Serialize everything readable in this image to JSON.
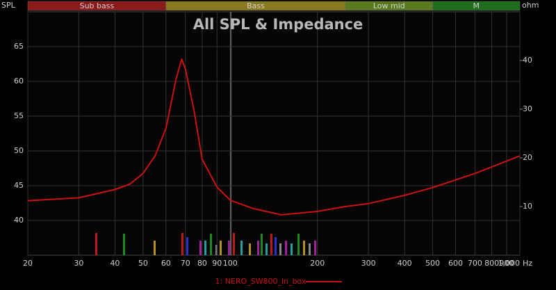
{
  "chart_data": {
    "type": "line",
    "title": "All SPL & Impedance",
    "ylabel": "SPL",
    "y2label": "ohm",
    "xlabel": "Hz",
    "bands": [
      {
        "name": "Sub bass",
        "from": 20,
        "to": 60,
        "color": "#8b1a1a"
      },
      {
        "name": "Bass",
        "from": 60,
        "to": 250,
        "color": "#8a7a1e"
      },
      {
        "name": "Low mid",
        "from": 250,
        "to": 500,
        "color": "#5a7a1e"
      },
      {
        "name": "M",
        "from": 500,
        "to": 1000,
        "color": "#1e6e1e"
      }
    ],
    "xscale": "log",
    "xlim": [
      20,
      1000
    ],
    "xticks": [
      20,
      30,
      40,
      50,
      60,
      70,
      80,
      90,
      100,
      200,
      300,
      400,
      500,
      600,
      700,
      800,
      900,
      {
        "value": 1000,
        "label": "1,000"
      }
    ],
    "ylim": [
      35,
      70
    ],
    "yticks": [
      40,
      45,
      50,
      55,
      60,
      65
    ],
    "y2lim": [
      0,
      50
    ],
    "y2ticks": [
      10,
      20,
      30,
      40
    ],
    "grid": true,
    "series": [
      {
        "name": "1: NERO_SW800_in_box",
        "color": "#cc1111",
        "axis": "y2",
        "x": [
          20,
          30,
          40,
          45,
          50,
          55,
          60,
          65,
          68,
          70,
          75,
          80,
          90,
          100,
          120,
          150,
          200,
          250,
          300,
          400,
          500,
          700,
          1000
        ],
        "values": [
          11.2,
          11.8,
          13.5,
          14.6,
          16.8,
          20.4,
          26.1,
          36.2,
          40.3,
          38.3,
          29.7,
          19.7,
          14,
          11.3,
          9.6,
          8.3,
          9,
          10,
          10.6,
          12.3,
          13.9,
          16.8,
          20.4
        ]
      }
    ]
  }
}
